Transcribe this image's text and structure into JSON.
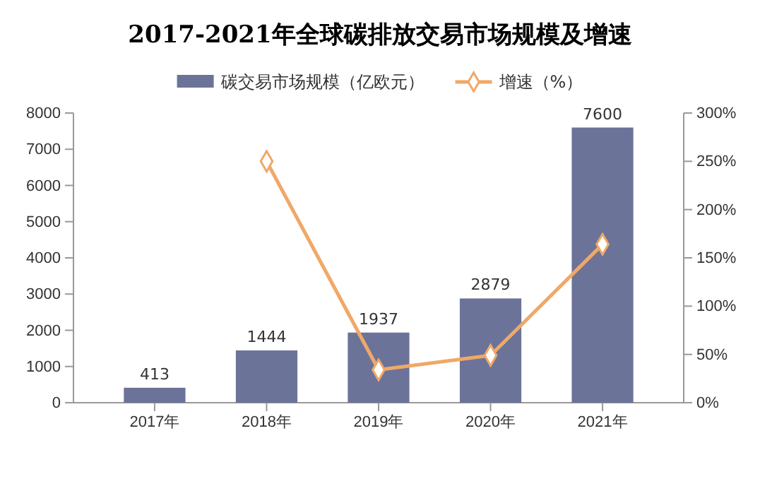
{
  "chart_data": {
    "type": "bar",
    "title": "2017-2021年全球碳排放交易市场规模及增速",
    "categories": [
      "2017年",
      "2018年",
      "2019年",
      "2020年",
      "2021年"
    ],
    "series": [
      {
        "name": "碳交易市场规模（亿欧元）",
        "color": "#6b7399",
        "values": [
          413,
          1444,
          1937,
          2879,
          7600
        ],
        "value_labels": [
          "413",
          "1444",
          "1937",
          "2879",
          "7600"
        ]
      },
      {
        "name": "增速（%）",
        "type": "line",
        "axis": "y2",
        "color": "#f0a868",
        "values": [
          null,
          250,
          34,
          49,
          164
        ],
        "marker": "diamond"
      }
    ],
    "ylim": [
      0,
      8000
    ],
    "yticks": [
      0,
      1000,
      2000,
      3000,
      4000,
      5000,
      6000,
      7000,
      8000
    ],
    "y2lim": [
      0,
      300
    ],
    "y2ticks": [
      {
        "value": 0,
        "label": "0%"
      },
      {
        "value": 50,
        "label": "50%"
      },
      {
        "value": 100,
        "label": "100%"
      },
      {
        "value": 150,
        "label": "150%"
      },
      {
        "value": 200,
        "label": "200%"
      },
      {
        "value": 250,
        "label": "250%"
      },
      {
        "value": 300,
        "label": "300%"
      }
    ],
    "legend": "top",
    "grid": false
  }
}
